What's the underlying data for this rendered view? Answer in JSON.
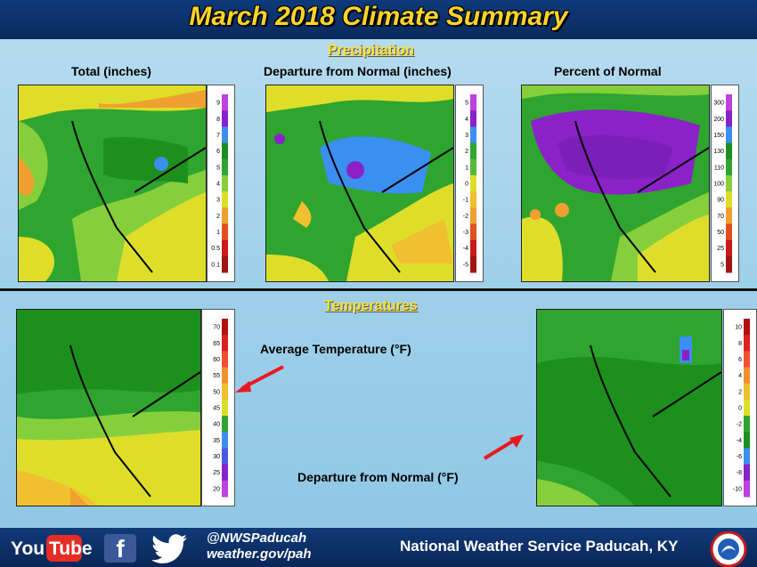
{
  "title": "March 2018 Climate Summary",
  "precip": {
    "section_title": "Precipitation",
    "panel1_label": "Total (inches)",
    "panel2_label": "Departure from Normal (inches)",
    "panel3_label": "Percent of Normal",
    "legend_total": [
      "9",
      "8",
      "7",
      "6",
      "5",
      "4",
      "3",
      "2",
      "1",
      "0.5",
      "0.1"
    ],
    "legend_total_colors": [
      "#c040e0",
      "#8a22c8",
      "#3a8ff0",
      "#1d8f1d",
      "#2fa52f",
      "#86cf3c",
      "#dede2a",
      "#f0a030",
      "#e05020",
      "#c81a1a",
      "#a01414"
    ],
    "legend_dep": [
      "5",
      "4",
      "3",
      "2",
      "1",
      "0",
      "-1",
      "-2",
      "-3",
      "-4",
      "-5"
    ],
    "legend_dep_colors": [
      "#c040e0",
      "#8a22c8",
      "#3a8ff0",
      "#2fa52f",
      "#57b83a",
      "#dede2a",
      "#f0c030",
      "#f0a030",
      "#e05020",
      "#c81a1a",
      "#a01414"
    ],
    "legend_pct": [
      "300",
      "200",
      "150",
      "130",
      "110",
      "100",
      "90",
      "70",
      "50",
      "25",
      "5"
    ],
    "legend_pct_colors": [
      "#c040e0",
      "#8a22c8",
      "#3a8ff0",
      "#1d8f1d",
      "#2fa52f",
      "#86cf3c",
      "#dede2a",
      "#f0a030",
      "#e05020",
      "#c81a1a",
      "#a01414"
    ]
  },
  "temps": {
    "section_title": "Temperatures",
    "avg_label": "Average Temperature (°F)",
    "dep_label": "Departure from Normal (°F)",
    "legend_avg": [
      "70",
      "65",
      "60",
      "55",
      "50",
      "45",
      "40",
      "35",
      "30",
      "25",
      "20"
    ],
    "legend_avg_colors": [
      "#b01010",
      "#d82020",
      "#f05030",
      "#f09030",
      "#f0c030",
      "#dede2a",
      "#2fa52f",
      "#3a8ff0",
      "#4a5ae0",
      "#8a22c8",
      "#c040e0"
    ],
    "legend_dep": [
      "10",
      "8",
      "6",
      "4",
      "2",
      "0",
      "-2",
      "-4",
      "-6",
      "-8",
      "-10"
    ],
    "legend_dep_colors": [
      "#b01010",
      "#e02020",
      "#f05030",
      "#f09030",
      "#f0c030",
      "#dede2a",
      "#2fa52f",
      "#1d8f1d",
      "#3a8ff0",
      "#8a22c8",
      "#c040e0"
    ]
  },
  "footer": {
    "youtube_you": "You",
    "youtube_tube": "Tube",
    "facebook_glyph": "f",
    "twitter_handle": "@NWSPaducah",
    "website": "weather.gov/pah",
    "office_name": "National Weather Service Paducah, KY"
  },
  "colors": {
    "header_bg": "#0e3a7a",
    "title_yellow": "#ffd42a",
    "arrow_red": "#e8191e"
  }
}
